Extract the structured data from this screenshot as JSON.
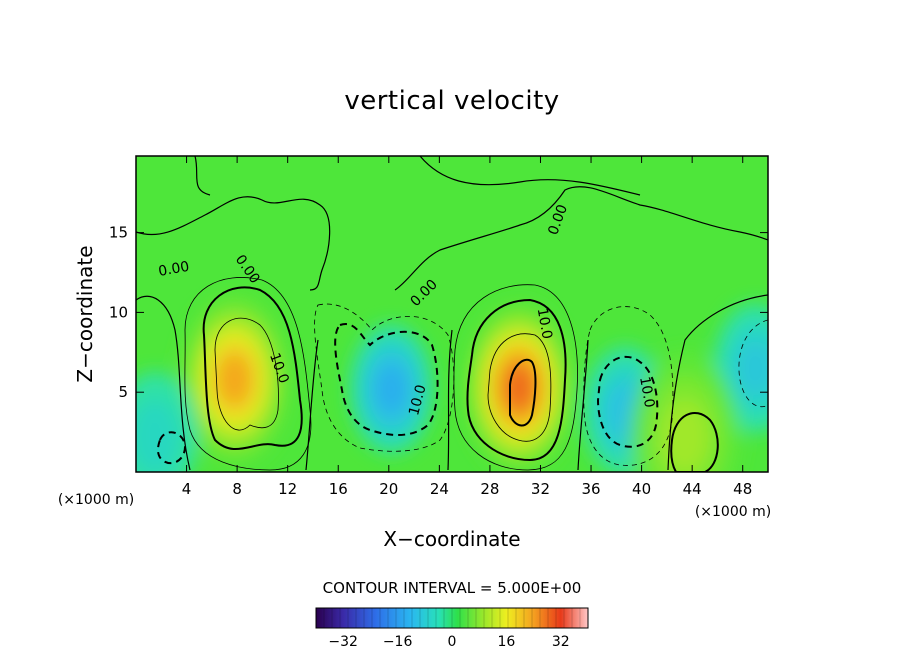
{
  "chart_data": {
    "type": "heatmap",
    "title": "vertical velocity",
    "xlabel": "X−coordinate",
    "ylabel": "Z−coordinate",
    "x_unit_label": "(×1000 m)",
    "z_unit_label": "(×1000 m)",
    "xlim": [
      0,
      50
    ],
    "ylim": [
      0,
      19.8
    ],
    "x_ticks": [
      "4",
      "8",
      "12",
      "16",
      "20",
      "24",
      "28",
      "32",
      "36",
      "40",
      "44",
      "48"
    ],
    "x_tick_values": [
      4,
      8,
      12,
      16,
      20,
      24,
      28,
      32,
      36,
      40,
      44,
      48
    ],
    "y_ticks": [
      "5",
      "10",
      "15"
    ],
    "y_tick_values": [
      5,
      10,
      15
    ],
    "contour_interval_text": "CONTOUR INTERVAL = 5.000E+00",
    "contour_interval": 5.0,
    "colorbar": {
      "range": [
        -40,
        40
      ],
      "ticks": [
        "−32",
        "−16",
        "0",
        "16",
        "32"
      ],
      "tick_values": [
        -32,
        -16,
        0,
        16,
        32
      ]
    },
    "contour_labels": [
      {
        "text": "0.00",
        "x": 3.0,
        "z": 12.7,
        "angle": -10
      },
      {
        "text": "0.00",
        "x": 8.8,
        "z": 12.7,
        "angle": 55
      },
      {
        "text": "10.0",
        "x": 11.3,
        "z": 6.5,
        "angle": 70
      },
      {
        "text": "10.0",
        "x": 22.3,
        "z": 4.5,
        "angle": -75
      },
      {
        "text": "0.00",
        "x": 22.8,
        "z": 11.2,
        "angle": -45
      },
      {
        "text": "0.00",
        "x": 33.4,
        "z": 15.8,
        "angle": -70
      },
      {
        "text": "10.0",
        "x": 32.3,
        "z": 9.3,
        "angle": 80
      },
      {
        "text": "10.0",
        "x": 40.4,
        "z": 5.0,
        "angle": 80
      }
    ],
    "features": [
      {
        "kind": "updraft",
        "x": 7.8,
        "z": 5.8,
        "peak": 28
      },
      {
        "kind": "updraft",
        "x": 30.3,
        "z": 5.3,
        "peak": 33
      },
      {
        "kind": "downdraft",
        "x": 20.2,
        "z": 5.2,
        "peak": -17
      },
      {
        "kind": "downdraft",
        "x": 38.7,
        "z": 3.8,
        "peak": -14
      },
      {
        "kind": "downdraft",
        "x": 49.0,
        "z": 6.5,
        "peak": -12
      },
      {
        "kind": "updraft",
        "x": 43.4,
        "z": 2.2,
        "peak": 14
      },
      {
        "kind": "downdraft",
        "x": 1.5,
        "z": 2.2,
        "peak": -8
      }
    ]
  }
}
